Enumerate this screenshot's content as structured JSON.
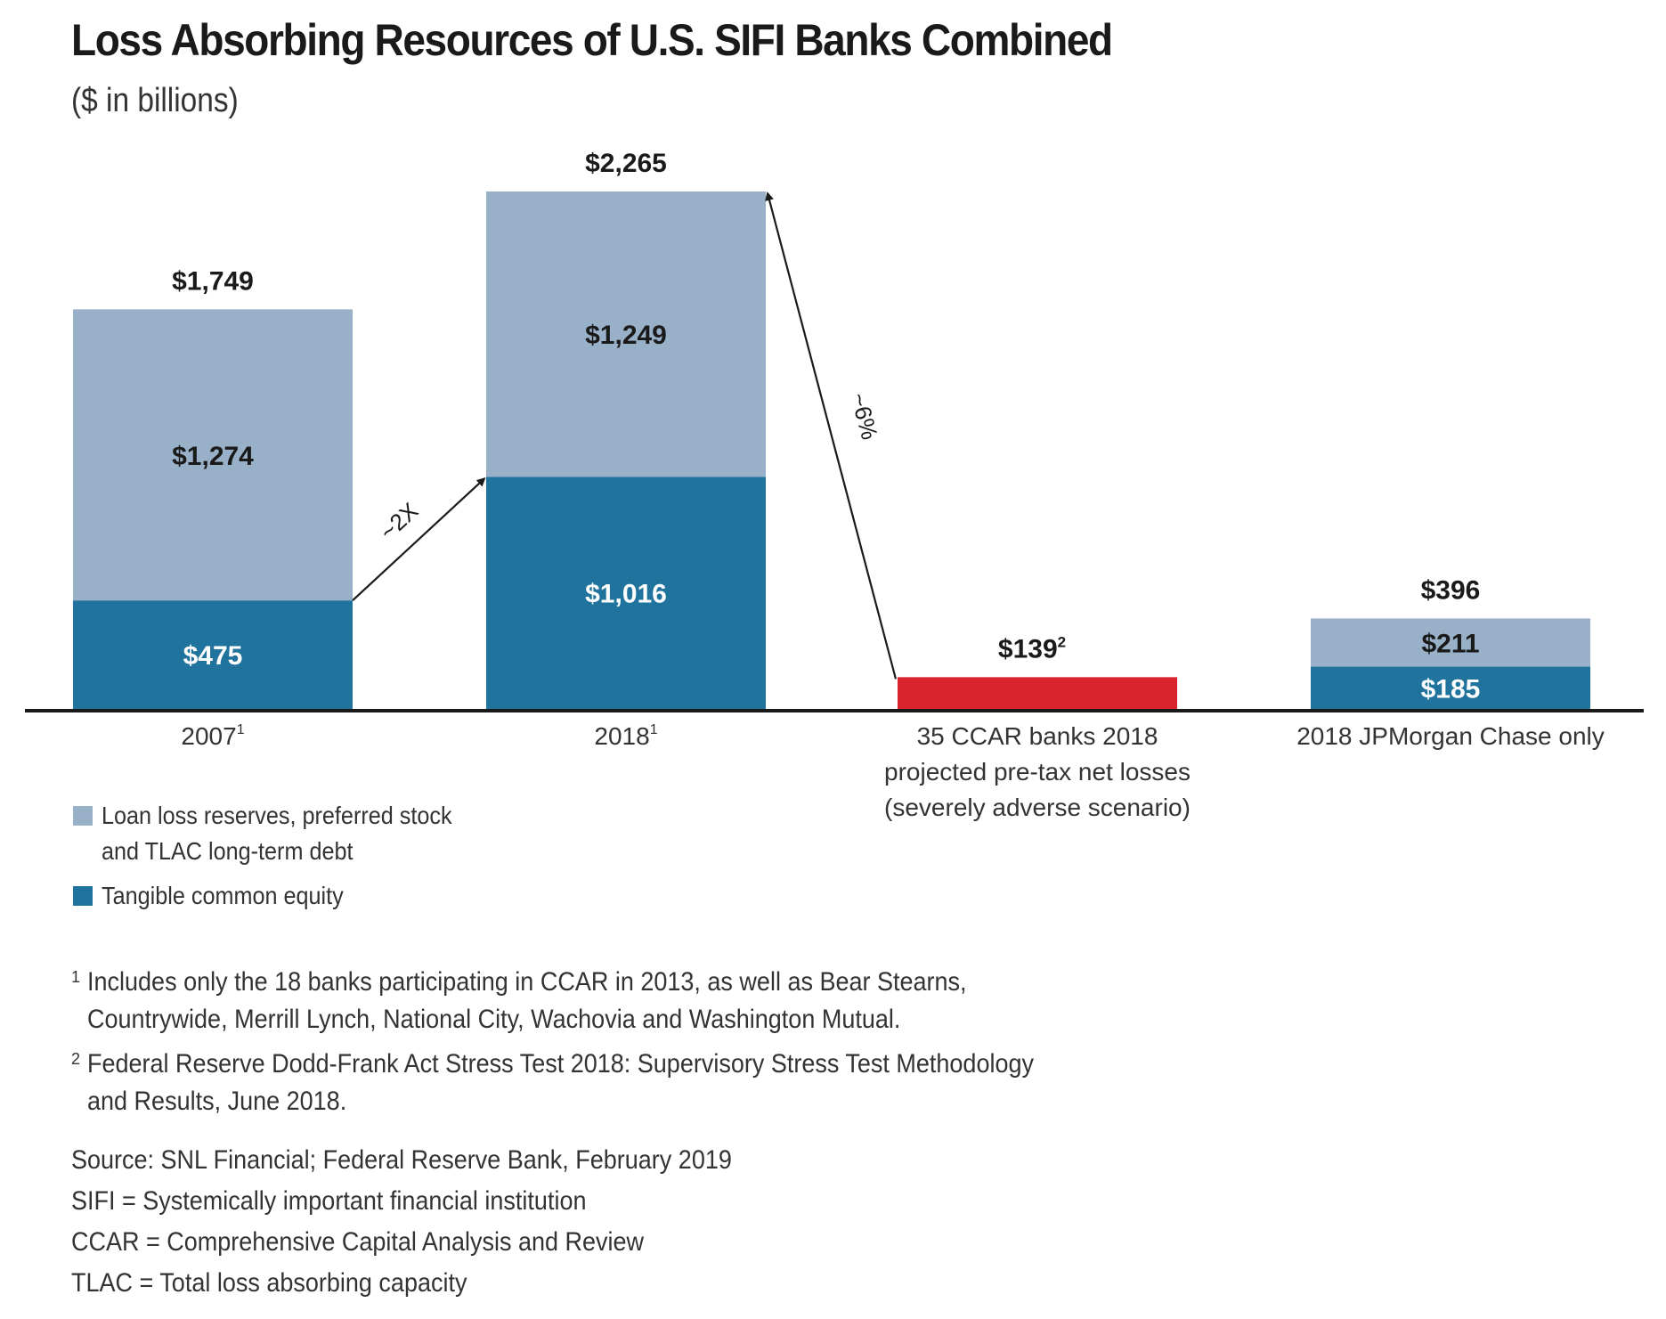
{
  "header": {
    "title": "Loss Absorbing Resources of U.S. SIFI Banks Combined",
    "subtitle": "($ in billions)"
  },
  "colors": {
    "light": "#98b1c8",
    "dark": "#20739c",
    "red": "#d9232d",
    "axis": "#1a1a1a"
  },
  "chart_data": {
    "type": "bar",
    "stacked": true,
    "title": "Loss Absorbing Resources of U.S. SIFI Banks Combined",
    "subtitle": "($ in billions)",
    "xlabel": "",
    "ylabel": "",
    "ylim": [
      0,
      2265
    ],
    "grid": false,
    "legend_position": "bottom-left",
    "categories": [
      {
        "label": "2007",
        "sup": "1",
        "lines": [
          "2007"
        ]
      },
      {
        "label": "2018",
        "sup": "1",
        "lines": [
          "2018"
        ]
      },
      {
        "label": "35 CCAR banks 2018 projected pre-tax net losses (severely adverse scenario)",
        "sup": "",
        "lines": [
          "35 CCAR banks 2018",
          "projected pre-tax net losses",
          "(severely adverse scenario)"
        ]
      },
      {
        "label": "2018 JPMorgan Chase only",
        "sup": "",
        "lines": [
          "2018 JPMorgan Chase only"
        ]
      }
    ],
    "series": [
      {
        "name": "Tangible common equity",
        "color_key": "dark",
        "values": [
          475,
          1016,
          null,
          185
        ],
        "labels": [
          "$475",
          "$1,016",
          "",
          "$185"
        ]
      },
      {
        "name": "Loan loss reserves, preferred stock and TLAC long-term debt",
        "color_key": "light",
        "values": [
          1274,
          1249,
          null,
          211
        ],
        "labels": [
          "$1,274",
          "$1,249",
          "",
          "$211"
        ]
      },
      {
        "name": "Projected pre-tax net losses",
        "color_key": "red",
        "values": [
          null,
          null,
          139,
          null
        ],
        "labels": [
          "",
          "",
          "",
          ""
        ]
      }
    ],
    "totals": [
      {
        "value": 1749,
        "label": "$1,749",
        "sup": ""
      },
      {
        "value": 2265,
        "label": "$2,265",
        "sup": ""
      },
      {
        "value": 139,
        "label": "$139",
        "sup": "2"
      },
      {
        "value": 396,
        "label": "$396",
        "sup": ""
      }
    ],
    "annotations": [
      {
        "text": "~2X",
        "from": "2007 tangible common equity",
        "to": "2018 tangible common equity"
      },
      {
        "text": "~6%",
        "from": "35 CCAR banks losses",
        "to": "2018 total"
      }
    ]
  },
  "legend": [
    {
      "label_lines": [
        "Loan loss reserves, preferred stock",
        "and TLAC long-term debt"
      ],
      "color_key": "light"
    },
    {
      "label_lines": [
        "Tangible common equity"
      ],
      "color_key": "dark"
    }
  ],
  "footnotes": [
    {
      "mark": "1",
      "lines": [
        "Includes only the 18 banks participating in CCAR in 2013, as well as Bear Stearns,",
        "Countrywide, Merrill Lynch, National City, Wachovia and Washington Mutual."
      ]
    },
    {
      "mark": "2",
      "lines": [
        "Federal Reserve Dodd-Frank Act Stress Test 2018: Supervisory Stress Test Methodology",
        "and Results, June 2018."
      ]
    }
  ],
  "sources": [
    "Source: SNL Financial; Federal Reserve Bank, February 2019",
    "SIFI = Systemically important financial institution",
    "CCAR = Comprehensive Capital Analysis and Review",
    "TLAC = Total loss absorbing capacity"
  ]
}
